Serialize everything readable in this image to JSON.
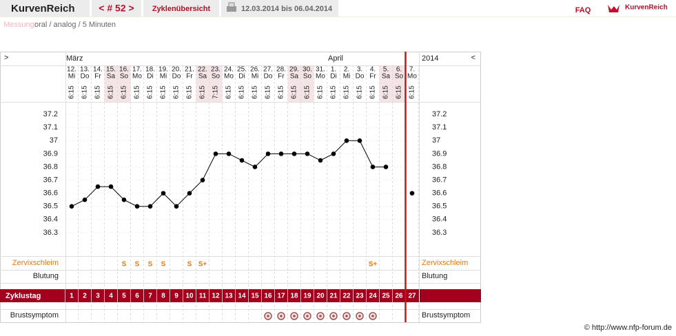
{
  "header": {
    "logo": "KurvenReich",
    "cycle": "< # 52 >",
    "nav": "Zyklenübersicht",
    "date_range": "12.03.2014 bis 06.04.2014",
    "faq": "FAQ",
    "brand": "KurvenReich"
  },
  "measurement": {
    "label": "Messung:",
    "value": "oral / analog / 5 Minuten"
  },
  "footer": "© http://www.nfp-forum.de",
  "chart_data": {
    "type": "line",
    "arrows": [
      ">",
      "<"
    ],
    "year": "2014",
    "month_labels": [
      "März",
      null,
      null,
      null,
      null,
      null,
      null,
      null,
      null,
      null,
      null,
      null,
      null,
      null,
      null,
      null,
      null,
      null,
      null,
      null,
      "April",
      null,
      null,
      null,
      null,
      null,
      null
    ],
    "categories": [
      "12.",
      "13.",
      "14.",
      "15.",
      "16.",
      "17.",
      "18.",
      "19.",
      "20.",
      "21.",
      "22.",
      "23.",
      "24.",
      "25.",
      "26.",
      "27.",
      "28.",
      "29.",
      "30.",
      "31.",
      "1.",
      "2.",
      "3.",
      "4.",
      "5.",
      "6.",
      "7."
    ],
    "weekdays": [
      "Mi",
      "Do",
      "Fr",
      "Sa",
      "So",
      "Mo",
      "Di",
      "Mi",
      "Do",
      "Fr",
      "Sa",
      "So",
      "Mo",
      "Di",
      "Mi",
      "Do",
      "Fr",
      "Sa",
      "So",
      "Mo",
      "Di",
      "Mi",
      "Do",
      "Fr",
      "Sa",
      "So",
      "Mo"
    ],
    "times": [
      "6:15",
      "6:15",
      "6:15",
      "6:15",
      "6:15",
      "6:15",
      "6:15",
      "6:15",
      "6:15",
      "6:15",
      "6:15",
      "7:15",
      "6:15",
      "6:15",
      "6:15",
      "6:15",
      "6:15",
      "6:15",
      "6:15",
      "6:15",
      "6:15",
      "6:15",
      "6:15",
      "6:15",
      "6:15",
      "6:15",
      "6:15"
    ],
    "values": [
      36.5,
      36.55,
      36.65,
      36.65,
      36.55,
      36.5,
      36.5,
      36.6,
      36.5,
      36.6,
      36.7,
      36.9,
      36.9,
      36.85,
      36.8,
      36.9,
      36.9,
      36.9,
      36.9,
      36.85,
      36.9,
      37,
      37,
      36.8,
      36.8,
      null,
      36.6
    ],
    "color": "#000000",
    "ylim": [
      36.2,
      37.3
    ],
    "yticks": [
      36.3,
      36.4,
      36.5,
      36.6,
      36.7,
      36.8,
      36.9,
      37,
      37.1,
      37.2
    ],
    "cervix_label": "Zervixschleim",
    "cervix": [
      null,
      null,
      null,
      null,
      "S",
      "S",
      "S",
      "S",
      null,
      "S",
      "S+",
      null,
      null,
      null,
      null,
      null,
      null,
      null,
      null,
      null,
      null,
      null,
      null,
      "S+",
      null,
      null,
      null
    ],
    "bleeding_label": "Blutung",
    "cycle_day_label": "Zyklustag",
    "cycle_days": [
      1,
      2,
      3,
      4,
      5,
      6,
      7,
      8,
      9,
      10,
      11,
      12,
      13,
      14,
      15,
      16,
      17,
      18,
      19,
      20,
      21,
      22,
      23,
      24,
      25,
      26,
      27
    ],
    "breast_label": "Brustsymptom",
    "brustsymptom_days": [
      16,
      17,
      18,
      19,
      20,
      21,
      22,
      23,
      24
    ]
  }
}
